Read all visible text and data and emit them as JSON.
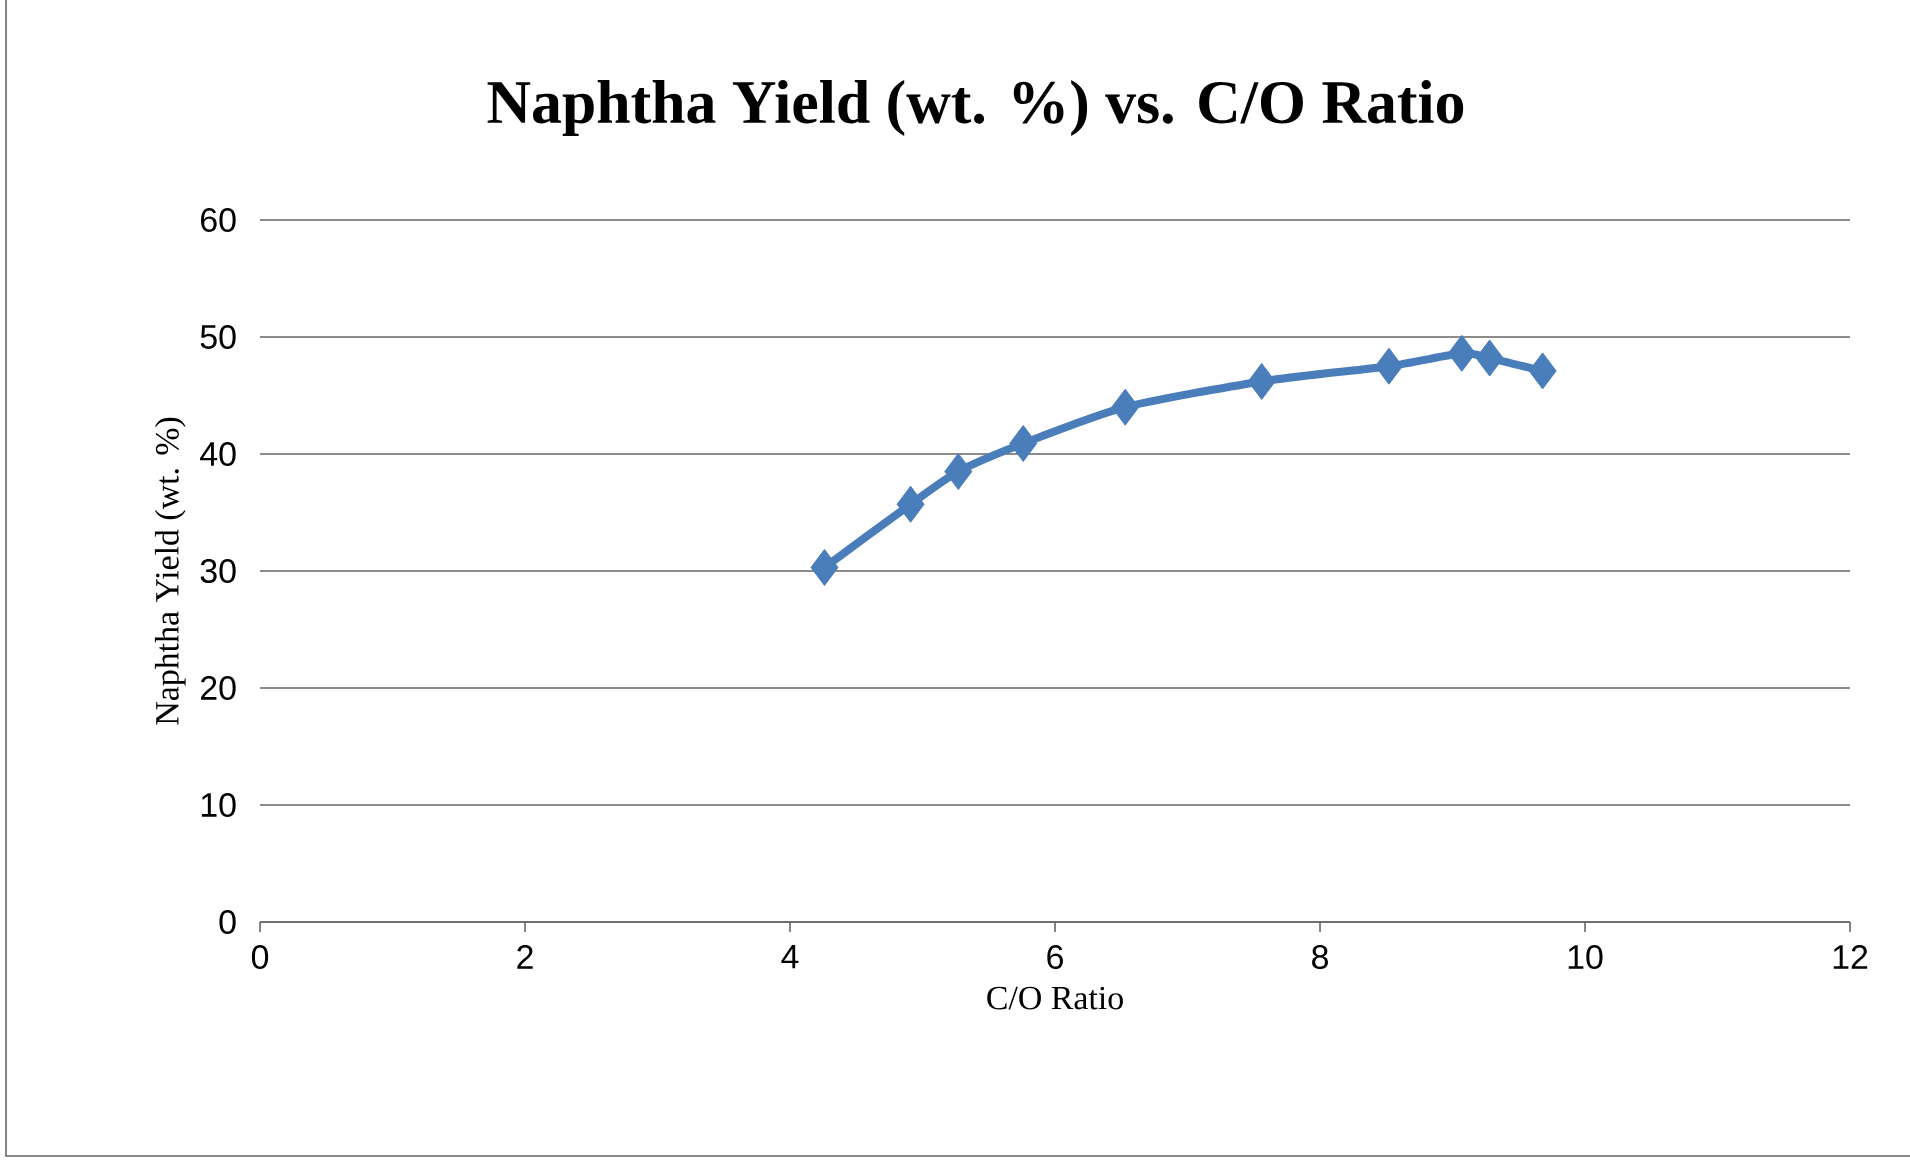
{
  "chart_data": {
    "type": "line",
    "title": "Naphtha Yield (wt. %)  vs.  C/O Ratio",
    "xlabel": "C/O Ratio",
    "ylabel": "Naphtha Yield (wt. %)",
    "series": [
      {
        "color": "#4a7ebb",
        "x": [
          4.26,
          4.91,
          5.27,
          5.76,
          6.53,
          7.56,
          8.52,
          9.07,
          9.28,
          9.68
        ],
        "values": [
          30.3,
          35.7,
          38.5,
          40.9,
          44.0,
          46.2,
          47.5,
          48.6,
          48.2,
          47.1
        ]
      }
    ],
    "xlim": [
      0,
      12
    ],
    "xticks": [
      0,
      2,
      4,
      6,
      8,
      10,
      12
    ],
    "ylim": [
      0,
      60
    ],
    "yticks": [
      0,
      10,
      20,
      30,
      40,
      50,
      60
    ],
    "grid": "y",
    "marker": "diamond",
    "line_style": "solid"
  }
}
